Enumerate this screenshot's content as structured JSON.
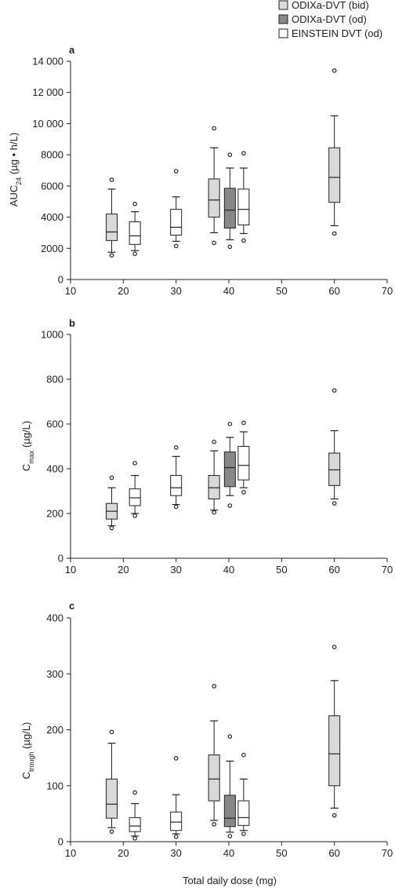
{
  "legend": {
    "placement": "top-right",
    "items": [
      {
        "label": "ODIXa-DVT (bid)",
        "color": "#d9d9d9"
      },
      {
        "label": "ODIXa-DVT (od)",
        "color": "#888888"
      },
      {
        "label": "EINSTEIN DVT (od)",
        "color": "#ffffff"
      }
    ]
  },
  "chart_data": [
    {
      "type": "boxplot",
      "panel": "a",
      "ylabel": {
        "main": "AUC",
        "sub": "24",
        "rest": " (µg • h/L)"
      },
      "xlabel": "",
      "xlim": [
        10,
        70
      ],
      "ylim": [
        0,
        14000
      ],
      "xticks": [
        "10",
        "20",
        "30",
        "40",
        "50",
        "60",
        "70"
      ],
      "yticks": [
        "0",
        "2000",
        "4000",
        "6000",
        "8000",
        "10 000",
        "12 000",
        "14 000"
      ],
      "grid": false,
      "boxes": [
        {
          "x": 17.8,
          "series": 0,
          "q1": 2500,
          "median": 3050,
          "q3": 4200,
          "whisker_low": 1750,
          "whisker_high": 5800,
          "outliers": [
            1550,
            6400
          ]
        },
        {
          "x": 22.2,
          "series": 2,
          "q1": 2250,
          "median": 2800,
          "q3": 3700,
          "whisker_low": 1850,
          "whisker_high": 4350,
          "outliers": [
            1650,
            4850
          ]
        },
        {
          "x": 30,
          "series": 2,
          "q1": 2850,
          "median": 3350,
          "q3": 4500,
          "whisker_low": 2450,
          "whisker_high": 5300,
          "outliers": [
            2150,
            6950
          ]
        },
        {
          "x": 37.2,
          "series": 0,
          "q1": 4000,
          "median": 5100,
          "q3": 6450,
          "whisker_low": 3000,
          "whisker_high": 8450,
          "outliers": [
            2350,
            9700
          ]
        },
        {
          "x": 40.2,
          "series": 1,
          "q1": 3300,
          "median": 4450,
          "q3": 5850,
          "whisker_low": 2550,
          "whisker_high": 7150,
          "outliers": [
            2100,
            8000
          ]
        },
        {
          "x": 42.8,
          "series": 2,
          "q1": 3500,
          "median": 4500,
          "q3": 5800,
          "whisker_low": 2950,
          "whisker_high": 7150,
          "outliers": [
            2500,
            8100
          ]
        },
        {
          "x": 60,
          "series": 0,
          "q1": 4950,
          "median": 6550,
          "q3": 8450,
          "whisker_low": 3450,
          "whisker_high": 10500,
          "outliers": [
            2950,
            13400
          ]
        }
      ]
    },
    {
      "type": "boxplot",
      "panel": "b",
      "ylabel": {
        "main": "C",
        "sub": "max",
        "rest": " (µg/L)"
      },
      "xlabel": "",
      "xlim": [
        10,
        70
      ],
      "ylim": [
        0,
        1000
      ],
      "xticks": [
        "10",
        "20",
        "30",
        "40",
        "50",
        "60",
        "70"
      ],
      "yticks": [
        "0",
        "200",
        "400",
        "600",
        "800",
        "1000"
      ],
      "grid": false,
      "boxes": [
        {
          "x": 17.8,
          "series": 0,
          "q1": 175,
          "median": 210,
          "q3": 245,
          "whisker_low": 145,
          "whisker_high": 315,
          "outliers": [
            135,
            360
          ]
        },
        {
          "x": 22.2,
          "series": 2,
          "q1": 235,
          "median": 270,
          "q3": 310,
          "whisker_low": 200,
          "whisker_high": 370,
          "outliers": [
            190,
            425
          ]
        },
        {
          "x": 30,
          "series": 2,
          "q1": 280,
          "median": 315,
          "q3": 370,
          "whisker_low": 240,
          "whisker_high": 455,
          "outliers": [
            230,
            495
          ]
        },
        {
          "x": 37.2,
          "series": 0,
          "q1": 265,
          "median": 315,
          "q3": 370,
          "whisker_low": 215,
          "whisker_high": 480,
          "outliers": [
            205,
            520
          ]
        },
        {
          "x": 40.2,
          "series": 1,
          "q1": 320,
          "median": 405,
          "q3": 475,
          "whisker_low": 280,
          "whisker_high": 540,
          "outliers": [
            235,
            600
          ]
        },
        {
          "x": 42.8,
          "series": 2,
          "q1": 350,
          "median": 415,
          "q3": 500,
          "whisker_low": 315,
          "whisker_high": 565,
          "outliers": [
            295,
            605
          ]
        },
        {
          "x": 60,
          "series": 0,
          "q1": 325,
          "median": 395,
          "q3": 470,
          "whisker_low": 265,
          "whisker_high": 570,
          "outliers": [
            245,
            750
          ]
        }
      ]
    },
    {
      "type": "boxplot",
      "panel": "c",
      "ylabel": {
        "main": "C",
        "sub": "trough",
        "rest": " (µg/L)"
      },
      "xlabel": "Total daily dose (mg)",
      "xlim": [
        10,
        70
      ],
      "ylim": [
        0,
        400
      ],
      "xticks": [
        "10",
        "20",
        "30",
        "40",
        "50",
        "60",
        "70"
      ],
      "yticks": [
        "0",
        "100",
        "200",
        "300",
        "400"
      ],
      "grid": false,
      "boxes": [
        {
          "x": 17.8,
          "series": 0,
          "q1": 42,
          "median": 67,
          "q3": 112,
          "whisker_low": 25,
          "whisker_high": 176,
          "outliers": [
            18,
            196
          ]
        },
        {
          "x": 22.2,
          "series": 2,
          "q1": 18,
          "median": 28,
          "q3": 43,
          "whisker_low": 10,
          "whisker_high": 68,
          "outliers": [
            6,
            88
          ]
        },
        {
          "x": 30,
          "series": 2,
          "q1": 20,
          "median": 35,
          "q3": 53,
          "whisker_low": 14,
          "whisker_high": 84,
          "outliers": [
            9,
            149
          ]
        },
        {
          "x": 37.2,
          "series": 0,
          "q1": 73,
          "median": 112,
          "q3": 155,
          "whisker_low": 38,
          "whisker_high": 216,
          "outliers": [
            31,
            278
          ]
        },
        {
          "x": 40.2,
          "series": 1,
          "q1": 27,
          "median": 42,
          "q3": 83,
          "whisker_low": 17,
          "whisker_high": 144,
          "outliers": [
            10,
            188
          ]
        },
        {
          "x": 42.8,
          "series": 2,
          "q1": 29,
          "median": 43,
          "q3": 73,
          "whisker_low": 20,
          "whisker_high": 112,
          "outliers": [
            14,
            155
          ]
        },
        {
          "x": 60,
          "series": 0,
          "q1": 100,
          "median": 157,
          "q3": 225,
          "whisker_low": 60,
          "whisker_high": 288,
          "outliers": [
            47,
            348
          ]
        }
      ]
    }
  ]
}
